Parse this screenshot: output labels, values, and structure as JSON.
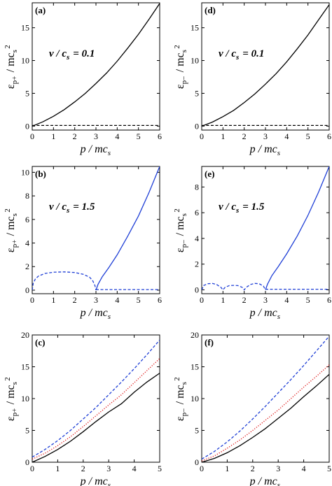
{
  "colors": {
    "black": "#000000",
    "blue": "#1f3fd6",
    "red": "#e02020"
  },
  "chart_data": [
    {
      "id": "a",
      "panel_label": "(a)",
      "type": "line",
      "xlim": [
        0,
        6
      ],
      "ylim": [
        -0.6,
        18.8
      ],
      "xticks": [
        0,
        1,
        2,
        3,
        4,
        5,
        6
      ],
      "yticks": [
        0,
        5,
        10,
        15
      ],
      "xlabel": "p / mc_s",
      "ylabel": "ε_{p+} / mc_s^2",
      "annotation": "v / c_s = 0.1",
      "series": [
        {
          "style": "solid",
          "color": "#000000",
          "x": [
            0,
            0.5,
            1,
            1.5,
            2,
            2.5,
            3,
            3.5,
            4,
            4.5,
            5,
            5.5,
            6
          ],
          "y": [
            0,
            0.66,
            1.5,
            2.5,
            3.7,
            5.0,
            6.5,
            8.1,
            9.9,
            11.9,
            14.0,
            16.3,
            18.7
          ]
        },
        {
          "style": "dashed",
          "color": "#000000",
          "x": [
            0,
            1,
            2,
            3,
            4,
            5,
            6
          ],
          "y": [
            0.1,
            0.1,
            0.1,
            0.1,
            0.1,
            0.1,
            0.1
          ]
        }
      ]
    },
    {
      "id": "d",
      "panel_label": "(d)",
      "type": "line",
      "xlim": [
        0,
        6
      ],
      "ylim": [
        -0.6,
        18.8
      ],
      "xticks": [
        0,
        1,
        2,
        3,
        4,
        5,
        6
      ],
      "yticks": [
        0,
        5,
        10,
        15
      ],
      "xlabel": "p / mc_s",
      "ylabel": "ε_{p−} / mc_s^2",
      "annotation": "v / c_s = 0.1",
      "series": [
        {
          "style": "solid",
          "color": "#000000",
          "x": [
            0,
            0.5,
            1,
            1.5,
            2,
            2.5,
            3,
            3.5,
            4,
            4.5,
            5,
            5.5,
            6
          ],
          "y": [
            0,
            0.62,
            1.45,
            2.4,
            3.6,
            4.9,
            6.4,
            8.0,
            9.8,
            11.8,
            13.9,
            16.2,
            18.5
          ]
        },
        {
          "style": "dashed",
          "color": "#000000",
          "x": [
            0,
            1,
            2,
            3,
            4,
            5,
            6
          ],
          "y": [
            0.1,
            0.1,
            0.1,
            0.1,
            0.1,
            0.1,
            0.1
          ]
        }
      ]
    },
    {
      "id": "b",
      "panel_label": "(b)",
      "type": "line",
      "xlim": [
        0,
        6
      ],
      "ylim": [
        -0.3,
        10.5
      ],
      "xticks": [
        0,
        1,
        2,
        3,
        4,
        5,
        6
      ],
      "yticks": [
        0,
        2,
        4,
        6,
        8,
        10
      ],
      "xlabel": "p / mc_s",
      "ylabel": "ε_{p+} / mc_s^2",
      "annotation": "v / c_s = 1.5",
      "series": [
        {
          "style": "dashed",
          "color": "#1f3fd6",
          "x": [
            0,
            0.05,
            0.15,
            0.3,
            0.6,
            1,
            1.5,
            2,
            2.4,
            2.7,
            2.85,
            2.95,
            3.0
          ],
          "y": [
            0,
            0.6,
            0.95,
            1.2,
            1.42,
            1.52,
            1.55,
            1.5,
            1.35,
            1.1,
            0.8,
            0.4,
            0
          ]
        },
        {
          "style": "solid",
          "color": "#1f3fd6",
          "x": [
            3.0,
            3.1,
            3.3,
            3.6,
            4.0,
            4.5,
            5.0,
            5.5,
            6.0
          ],
          "y": [
            0,
            0.5,
            1.15,
            1.9,
            3.0,
            4.6,
            6.3,
            8.3,
            10.5
          ]
        },
        {
          "style": "dashed",
          "color": "#1f3fd6",
          "x": [
            3.0,
            4,
            5,
            6
          ],
          "y": [
            0.05,
            0.05,
            0.05,
            0.05
          ]
        }
      ]
    },
    {
      "id": "e",
      "panel_label": "(e)",
      "type": "line",
      "xlim": [
        0,
        6
      ],
      "ylim": [
        -0.3,
        9.6
      ],
      "xticks": [
        0,
        1,
        2,
        3,
        4,
        5,
        6
      ],
      "yticks": [
        0,
        2,
        4,
        6,
        8
      ],
      "xlabel": "p / mc_s",
      "ylabel": "ε_{p−} / mc_s^2",
      "annotation": "v / c_s = 1.5",
      "series": [
        {
          "style": "dashed",
          "color": "#1f3fd6",
          "x": [
            0,
            0.1,
            0.3,
            0.5,
            0.7,
            0.9,
            1.0,
            1.1,
            1.3,
            1.5,
            1.7,
            1.9,
            2.0,
            2.1,
            2.3,
            2.5,
            2.7,
            2.9,
            3.0
          ],
          "y": [
            0,
            0.35,
            0.48,
            0.5,
            0.42,
            0.2,
            0,
            0.2,
            0.33,
            0.35,
            0.33,
            0.2,
            0,
            0.2,
            0.42,
            0.5,
            0.48,
            0.3,
            0
          ]
        },
        {
          "style": "solid",
          "color": "#1f3fd6",
          "x": [
            3.0,
            3.1,
            3.3,
            3.6,
            4.0,
            4.5,
            5.0,
            5.5,
            6.0
          ],
          "y": [
            0,
            0.45,
            1.1,
            1.8,
            2.8,
            4.2,
            5.8,
            7.6,
            9.6
          ]
        },
        {
          "style": "dashed",
          "color": "#1f3fd6",
          "x": [
            3.0,
            4,
            5,
            6
          ],
          "y": [
            0.05,
            0.05,
            0.05,
            0.05
          ]
        }
      ]
    },
    {
      "id": "c",
      "panel_label": "(c)",
      "type": "line",
      "xlim": [
        0,
        5
      ],
      "ylim": [
        0,
        20
      ],
      "xticks": [
        0,
        1,
        2,
        3,
        4,
        5
      ],
      "yticks": [
        0,
        5,
        10,
        15,
        20
      ],
      "xlabel": "p / mc_s",
      "ylabel": "ε_{p+} / mc_s^2",
      "annotation": "",
      "series": [
        {
          "style": "solid",
          "color": "#000000",
          "x": [
            0,
            0.5,
            1,
            1.5,
            2,
            2.5,
            3,
            3.5,
            4,
            4.5,
            5
          ],
          "y": [
            0,
            0.9,
            2.0,
            3.3,
            4.8,
            6.4,
            7.9,
            9.2,
            11.0,
            12.6,
            14.0
          ]
        },
        {
          "style": "dotted",
          "color": "#e02020",
          "x": [
            0,
            0.5,
            1,
            1.5,
            2,
            2.5,
            3,
            3.5,
            4,
            4.5,
            5
          ],
          "y": [
            0.5,
            1.4,
            2.6,
            4.0,
            5.6,
            7.3,
            9.0,
            10.6,
            12.5,
            14.4,
            16.3
          ]
        },
        {
          "style": "dashed",
          "color": "#1f3fd6",
          "x": [
            0,
            0.5,
            1,
            1.5,
            2,
            2.5,
            3,
            3.5,
            4,
            4.5,
            5
          ],
          "y": [
            0.8,
            2.0,
            3.4,
            5.0,
            6.8,
            8.6,
            10.6,
            12.6,
            14.7,
            16.9,
            19.2
          ]
        }
      ]
    },
    {
      "id": "f",
      "panel_label": "(f)",
      "type": "line",
      "xlim": [
        0,
        5
      ],
      "ylim": [
        0,
        20
      ],
      "xticks": [
        0,
        1,
        2,
        3,
        4,
        5
      ],
      "yticks": [
        0,
        5,
        10,
        15,
        20
      ],
      "xlabel": "p / mc_s",
      "ylabel": "ε_{p−} / mc_s^2",
      "annotation": "",
      "series": [
        {
          "style": "solid",
          "color": "#000000",
          "x": [
            0,
            0.5,
            1,
            1.5,
            2,
            2.5,
            3,
            3.5,
            4,
            4.5,
            5
          ],
          "y": [
            0,
            0.6,
            1.5,
            2.6,
            3.9,
            5.3,
            6.9,
            8.5,
            10.3,
            12.0,
            13.8
          ]
        },
        {
          "style": "dotted",
          "color": "#e02020",
          "x": [
            0,
            0.5,
            1,
            1.5,
            2,
            2.5,
            3,
            3.5,
            4,
            4.5,
            5
          ],
          "y": [
            0.2,
            1.0,
            2.2,
            3.5,
            5.0,
            6.6,
            8.2,
            10.0,
            11.8,
            13.5,
            15.3
          ]
        },
        {
          "style": "dashed",
          "color": "#1f3fd6",
          "x": [
            0,
            0.5,
            1,
            1.5,
            2,
            2.5,
            3,
            3.5,
            4,
            4.5,
            5
          ],
          "y": [
            0.5,
            1.7,
            3.2,
            4.9,
            6.8,
            8.8,
            10.9,
            13.0,
            15.2,
            17.5,
            19.8
          ]
        }
      ]
    }
  ]
}
